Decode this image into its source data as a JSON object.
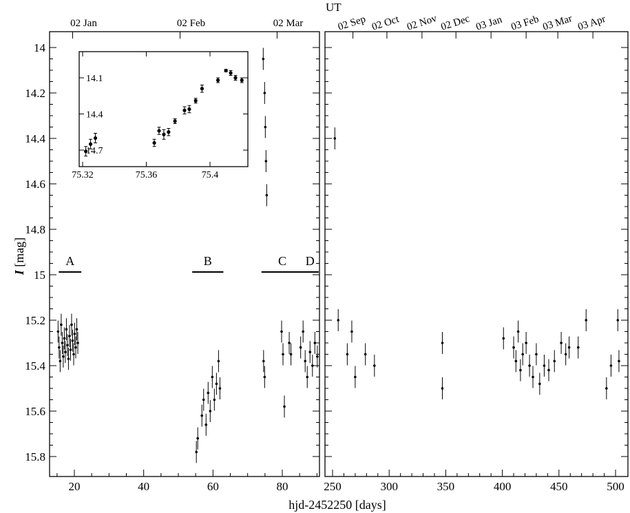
{
  "chart_data": [
    {
      "type": "scatter",
      "panel": "left",
      "ylabel_symbol": "I",
      "ylabel_unit": " [mag]",
      "y_axis": "inverted (brighter at top)",
      "xlim": [
        14,
        91
      ],
      "ylim": [
        13.95,
        15.9
      ],
      "xticks": [
        20,
        40,
        60,
        80
      ],
      "yticks": [
        14,
        14.2,
        14.4,
        14.6,
        14.8,
        15,
        15.2,
        15.4,
        15.6,
        15.8
      ],
      "ytick_labels": [
        "14",
        "14.2",
        "14.4",
        "14.6",
        "14.8",
        "15",
        "15.2",
        "15.4",
        "15.6",
        "15.8"
      ],
      "top_axis": [
        {
          "label": "02 Jan",
          "x": 19.5
        },
        {
          "label": "02 Feb",
          "x": 50.5
        },
        {
          "label": "02 Mar",
          "x": 78.5
        }
      ],
      "segments": [
        {
          "label": "A",
          "x": [
            15.5,
            22.0
          ]
        },
        {
          "label": "B",
          "x": [
            54.0,
            63.0
          ]
        },
        {
          "label": "C",
          "x": [
            74.0,
            86.0
          ]
        },
        {
          "label": "D",
          "x": [
            85.5,
            90.5
          ]
        }
      ],
      "points": [
        {
          "x": 15.3,
          "y": 15.25
        },
        {
          "x": 15.6,
          "y": 15.32
        },
        {
          "x": 15.9,
          "y": 15.38
        },
        {
          "x": 16.2,
          "y": 15.22
        },
        {
          "x": 16.5,
          "y": 15.3
        },
        {
          "x": 16.8,
          "y": 15.36
        },
        {
          "x": 17.1,
          "y": 15.28
        },
        {
          "x": 17.4,
          "y": 15.34
        },
        {
          "x": 17.7,
          "y": 15.24
        },
        {
          "x": 18.0,
          "y": 15.31
        },
        {
          "x": 18.3,
          "y": 15.37
        },
        {
          "x": 18.6,
          "y": 15.27
        },
        {
          "x": 18.9,
          "y": 15.33
        },
        {
          "x": 19.2,
          "y": 15.22
        },
        {
          "x": 19.5,
          "y": 15.29
        },
        {
          "x": 19.8,
          "y": 15.35
        },
        {
          "x": 20.1,
          "y": 15.26
        },
        {
          "x": 20.4,
          "y": 15.32
        },
        {
          "x": 20.7,
          "y": 15.24
        },
        {
          "x": 21.0,
          "y": 15.3
        },
        {
          "x": 55.2,
          "y": 15.78
        },
        {
          "x": 55.6,
          "y": 15.72
        },
        {
          "x": 56.8,
          "y": 15.62
        },
        {
          "x": 57.3,
          "y": 15.55
        },
        {
          "x": 58.0,
          "y": 15.66
        },
        {
          "x": 58.6,
          "y": 15.52
        },
        {
          "x": 59.2,
          "y": 15.6
        },
        {
          "x": 59.8,
          "y": 15.45
        },
        {
          "x": 60.4,
          "y": 15.55
        },
        {
          "x": 61.0,
          "y": 15.48
        },
        {
          "x": 61.6,
          "y": 15.38
        },
        {
          "x": 62.0,
          "y": 15.5
        },
        {
          "x": 74.5,
          "y": 14.05
        },
        {
          "x": 74.9,
          "y": 14.2
        },
        {
          "x": 75.1,
          "y": 14.35
        },
        {
          "x": 75.3,
          "y": 14.5
        },
        {
          "x": 75.5,
          "y": 14.65
        },
        {
          "x": 74.6,
          "y": 15.38
        },
        {
          "x": 74.9,
          "y": 15.45
        },
        {
          "x": 79.8,
          "y": 15.25
        },
        {
          "x": 80.2,
          "y": 15.35
        },
        {
          "x": 80.6,
          "y": 15.58
        },
        {
          "x": 82.0,
          "y": 15.3
        },
        {
          "x": 82.5,
          "y": 15.35
        },
        {
          "x": 85.3,
          "y": 15.32
        },
        {
          "x": 86.0,
          "y": 15.25
        },
        {
          "x": 86.6,
          "y": 15.38
        },
        {
          "x": 87.2,
          "y": 15.45
        },
        {
          "x": 88.0,
          "y": 15.34
        },
        {
          "x": 88.7,
          "y": 15.4
        },
        {
          "x": 89.4,
          "y": 15.3
        },
        {
          "x": 90.1,
          "y": 15.36
        }
      ],
      "inset": {
        "xlim": [
          75.318,
          75.427
        ],
        "ylim": [
          14.78,
          13.97
        ],
        "xticks": [
          75.32,
          75.36,
          75.4
        ],
        "xtick_labels": [
          "75.32",
          "75.36",
          "75.4"
        ],
        "yticks": [
          14.1,
          14.4,
          14.7
        ],
        "ytick_labels": [
          "14.1",
          "14.4",
          "14.7"
        ],
        "points": [
          {
            "x": 75.322,
            "y": 14.71,
            "err": 0.04
          },
          {
            "x": 75.325,
            "y": 14.65,
            "err": 0.04
          },
          {
            "x": 75.328,
            "y": 14.6,
            "err": 0.04
          },
          {
            "x": 75.365,
            "y": 14.64,
            "err": 0.03
          },
          {
            "x": 75.368,
            "y": 14.54,
            "err": 0.03
          },
          {
            "x": 75.371,
            "y": 14.57,
            "err": 0.04
          },
          {
            "x": 75.374,
            "y": 14.55,
            "err": 0.03
          },
          {
            "x": 75.378,
            "y": 14.46,
            "err": 0.02
          },
          {
            "x": 75.384,
            "y": 14.37,
            "err": 0.03
          },
          {
            "x": 75.387,
            "y": 14.36,
            "err": 0.03
          },
          {
            "x": 75.391,
            "y": 14.29,
            "err": 0.02
          },
          {
            "x": 75.395,
            "y": 14.19,
            "err": 0.03
          },
          {
            "x": 75.405,
            "y": 14.12,
            "err": 0.02
          },
          {
            "x": 75.41,
            "y": 14.04,
            "err": 0.01
          },
          {
            "x": 75.413,
            "y": 14.06,
            "err": 0.02
          },
          {
            "x": 75.416,
            "y": 14.1,
            "err": 0.02
          },
          {
            "x": 75.42,
            "y": 14.12,
            "err": 0.02
          }
        ]
      }
    },
    {
      "type": "scatter",
      "panel": "right",
      "xlim": [
        245,
        505
      ],
      "ylim": [
        13.95,
        15.9
      ],
      "xticks": [
        250,
        300,
        350,
        400,
        450,
        500
      ],
      "xlabel": "hjd-2452250 [days]",
      "top_axis_title": "UT",
      "top_axis": [
        {
          "label": "02 Sep",
          "x": 268
        },
        {
          "label": "02 Oct",
          "x": 298
        },
        {
          "label": "02 Nov",
          "x": 329
        },
        {
          "label": "02 Dec",
          "x": 359
        },
        {
          "label": "03 Jan",
          "x": 390
        },
        {
          "label": "03 Feb",
          "x": 421
        },
        {
          "label": "03 Mar",
          "x": 449
        },
        {
          "label": "03 Apr",
          "x": 480
        }
      ],
      "points": [
        {
          "x": 252,
          "y": 14.4
        },
        {
          "x": 255,
          "y": 15.2
        },
        {
          "x": 263,
          "y": 15.35
        },
        {
          "x": 267,
          "y": 15.25
        },
        {
          "x": 270,
          "y": 15.45
        },
        {
          "x": 279,
          "y": 15.35
        },
        {
          "x": 287,
          "y": 15.4
        },
        {
          "x": 347,
          "y": 15.3
        },
        {
          "x": 347,
          "y": 15.5
        },
        {
          "x": 401,
          "y": 15.28
        },
        {
          "x": 410,
          "y": 15.32
        },
        {
          "x": 412,
          "y": 15.38
        },
        {
          "x": 414,
          "y": 15.25
        },
        {
          "x": 416,
          "y": 15.42
        },
        {
          "x": 418,
          "y": 15.35
        },
        {
          "x": 421,
          "y": 15.3
        },
        {
          "x": 424,
          "y": 15.4
        },
        {
          "x": 427,
          "y": 15.45
        },
        {
          "x": 430,
          "y": 15.35
        },
        {
          "x": 433,
          "y": 15.48
        },
        {
          "x": 437,
          "y": 15.4
        },
        {
          "x": 441,
          "y": 15.42
        },
        {
          "x": 446,
          "y": 15.38
        },
        {
          "x": 452,
          "y": 15.3
        },
        {
          "x": 456,
          "y": 15.35
        },
        {
          "x": 459,
          "y": 15.32
        },
        {
          "x": 467,
          "y": 15.32
        },
        {
          "x": 474,
          "y": 15.2
        },
        {
          "x": 492,
          "y": 15.5
        },
        {
          "x": 496,
          "y": 15.4
        },
        {
          "x": 502,
          "y": 15.2
        },
        {
          "x": 503,
          "y": 15.38
        }
      ]
    }
  ]
}
